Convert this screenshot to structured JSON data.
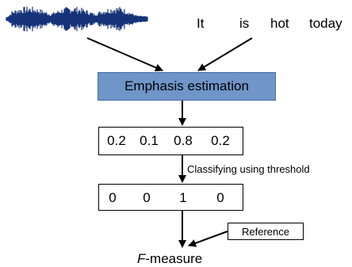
{
  "words": [
    "It",
    "is",
    "hot",
    "today"
  ],
  "emphasis_box": {
    "label": "Emphasis estimation"
  },
  "scores": [
    "0.2",
    "0.1",
    "0.8",
    "0.2"
  ],
  "classify_label": "Classifying using threshold",
  "labels": [
    "0",
    "0",
    "1",
    "0"
  ],
  "reference": {
    "label": "Reference"
  },
  "fmeasure": {
    "italic": "F",
    "rest": "-measure"
  },
  "colors": {
    "waveform": "#16337a",
    "emphasis_box": "#6f95c9"
  }
}
